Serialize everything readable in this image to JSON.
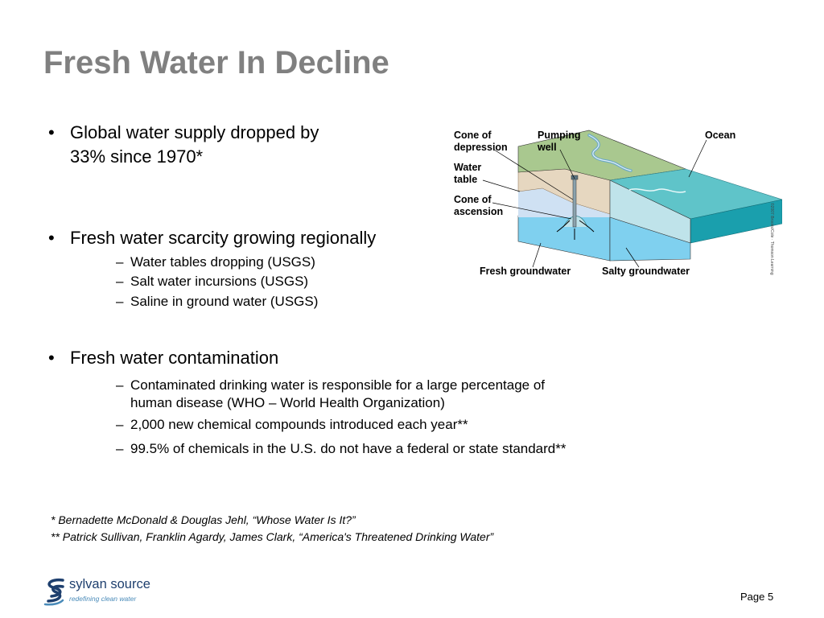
{
  "slide": {
    "title": "Fresh Water In Decline",
    "page_label": "Page 5"
  },
  "bullets": [
    {
      "lines": [
        "Global water supply dropped by",
        "33% since 1970*"
      ],
      "subs": []
    },
    {
      "lines": [
        "Fresh water scarcity growing regionally"
      ],
      "subs": [
        {
          "lines": [
            "Water tables dropping (USGS)"
          ]
        },
        {
          "lines": [
            "Salt water incursions (USGS)"
          ]
        },
        {
          "lines": [
            "Saline in ground water (USGS)"
          ]
        }
      ]
    },
    {
      "lines": [
        "Fresh water contamination"
      ],
      "subs": [
        {
          "lines": [
            "Contaminated drinking water is responsible for a large percentage of",
            "human disease (WHO – World Health Organization)"
          ]
        },
        {
          "lines": [
            "2,000 new chemical compounds introduced each year**"
          ]
        },
        {
          "lines": [
            "99.5% of chemicals in the U.S. do not have a  federal or state standard**"
          ]
        }
      ]
    }
  ],
  "footnotes": [
    "* Bernadette McDonald & Douglas Jehl, “Whose Water Is It?”",
    "** Patrick Sullivan, Franklin Agardy, James Clark, “America's Threatened Drinking Water”"
  ],
  "diagram": {
    "labels": {
      "cone_depression": [
        "Cone of",
        "depression"
      ],
      "pumping_well": [
        "Pumping",
        "well"
      ],
      "ocean": "Ocean",
      "water_table": [
        "Water",
        "table"
      ],
      "cone_ascension": [
        "Cone of",
        "ascension"
      ],
      "fresh_groundwater": "Fresh groundwater",
      "salty_groundwater": "Salty groundwater"
    },
    "credit": "©2007 Brooks/Cole · Thomson Learning",
    "colors": {
      "land": "#a9c88f",
      "soil": "#e6d7c0",
      "fresh_ground": "#cfe1f3",
      "fresh_aquifer": "#7fd0ef",
      "ocean": "#5fc4c9",
      "ocean_side": "#1a9fad"
    }
  },
  "logo": {
    "name": "sylvan source",
    "tagline": "redefining clean water",
    "color": "#1e3f6e"
  }
}
